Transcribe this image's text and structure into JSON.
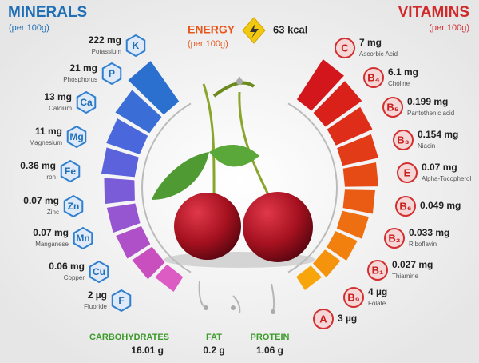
{
  "minerals": {
    "title": "MINERALS",
    "subtitle": "(per 100g)",
    "items": [
      {
        "symbol": "K",
        "amount": "222 mg",
        "name": "Potassium"
      },
      {
        "symbol": "P",
        "amount": "21 mg",
        "name": "Phosphorus"
      },
      {
        "symbol": "Ca",
        "amount": "13 mg",
        "name": "Calcium"
      },
      {
        "symbol": "Mg",
        "amount": "11 mg",
        "name": "Magnesium"
      },
      {
        "symbol": "Fe",
        "amount": "0.36 mg",
        "name": "Iron"
      },
      {
        "symbol": "Zn",
        "amount": "0.07 mg",
        "name": "Zinc"
      },
      {
        "symbol": "Mn",
        "amount": "0.07 mg",
        "name": "Manganese"
      },
      {
        "symbol": "Cu",
        "amount": "0.06 mg",
        "name": "Copper"
      },
      {
        "symbol": "F",
        "amount": "2 µg",
        "name": "Fluoride"
      }
    ]
  },
  "energy": {
    "title": "ENERGY",
    "subtitle": "(per 100g)",
    "value": "63 kcal"
  },
  "vitamins": {
    "title": "VITAMINS",
    "subtitle": "(per 100g)",
    "items": [
      {
        "symbol": "C",
        "amount": "7 mg",
        "name": "Ascorbic Acid"
      },
      {
        "symbol": "B₄",
        "amount": "6.1 mg",
        "name": "Choline"
      },
      {
        "symbol": "B₅",
        "amount": "0.199 mg",
        "name": "Pantothenic acid"
      },
      {
        "symbol": "B₃",
        "amount": "0.154 mg",
        "name": "Niacin"
      },
      {
        "symbol": "E",
        "amount": "0.07 mg",
        "name": "Alpha-Tocopherol"
      },
      {
        "symbol": "B₆",
        "amount": "0.049 mg"
      },
      {
        "symbol": "B₂",
        "amount": "0.033 mg",
        "name": "Riboflavin"
      },
      {
        "symbol": "B₁",
        "amount": "0.027 mg",
        "name": "Thiamine"
      },
      {
        "symbol": "B₉",
        "amount": "4 µg",
        "name": "Folate"
      },
      {
        "symbol": "A",
        "amount": "3 µg"
      }
    ]
  },
  "nutrients": [
    {
      "name": "CARBOHYDRATES",
      "amount": "16.01 g"
    },
    {
      "name": "FAT",
      "amount": "0.2 g"
    },
    {
      "name": "PROTEIN",
      "amount": "1.06 g"
    }
  ]
}
